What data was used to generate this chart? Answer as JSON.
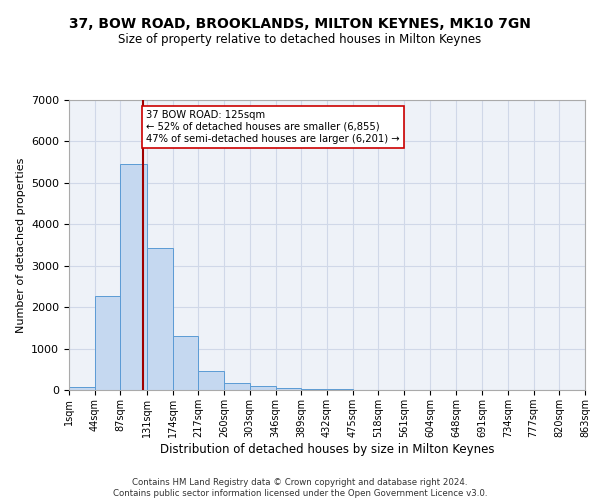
{
  "title": "37, BOW ROAD, BROOKLANDS, MILTON KEYNES, MK10 7GN",
  "subtitle": "Size of property relative to detached houses in Milton Keynes",
  "xlabel": "Distribution of detached houses by size in Milton Keynes",
  "ylabel": "Number of detached properties",
  "bar_color": "#c5d8f0",
  "bar_edge_color": "#5b9bd5",
  "grid_color": "#d0d8e8",
  "background_color": "#eef2f8",
  "vline_x": 125,
  "vline_color": "#a00000",
  "annotation_text": "37 BOW ROAD: 125sqm\n← 52% of detached houses are smaller (6,855)\n47% of semi-detached houses are larger (6,201) →",
  "annotation_box_color": "#ffffff",
  "annotation_box_edge": "#cc0000",
  "footnote": "Contains HM Land Registry data © Crown copyright and database right 2024.\nContains public sector information licensed under the Open Government Licence v3.0.",
  "bin_edges": [
    1,
    44,
    87,
    131,
    174,
    217,
    260,
    303,
    346,
    389,
    432,
    475,
    518,
    561,
    604,
    648,
    691,
    734,
    777,
    820,
    863
  ],
  "bin_labels": [
    "1sqm",
    "44sqm",
    "87sqm",
    "131sqm",
    "174sqm",
    "217sqm",
    "260sqm",
    "303sqm",
    "346sqm",
    "389sqm",
    "432sqm",
    "475sqm",
    "518sqm",
    "561sqm",
    "604sqm",
    "648sqm",
    "691sqm",
    "734sqm",
    "777sqm",
    "820sqm",
    "863sqm"
  ],
  "bar_heights": [
    80,
    2270,
    5460,
    3430,
    1310,
    460,
    160,
    90,
    50,
    30,
    15,
    8,
    4,
    2,
    1,
    1,
    0,
    0,
    0,
    0
  ],
  "ylim": [
    0,
    7000
  ],
  "yticks": [
    0,
    1000,
    2000,
    3000,
    4000,
    5000,
    6000,
    7000
  ]
}
